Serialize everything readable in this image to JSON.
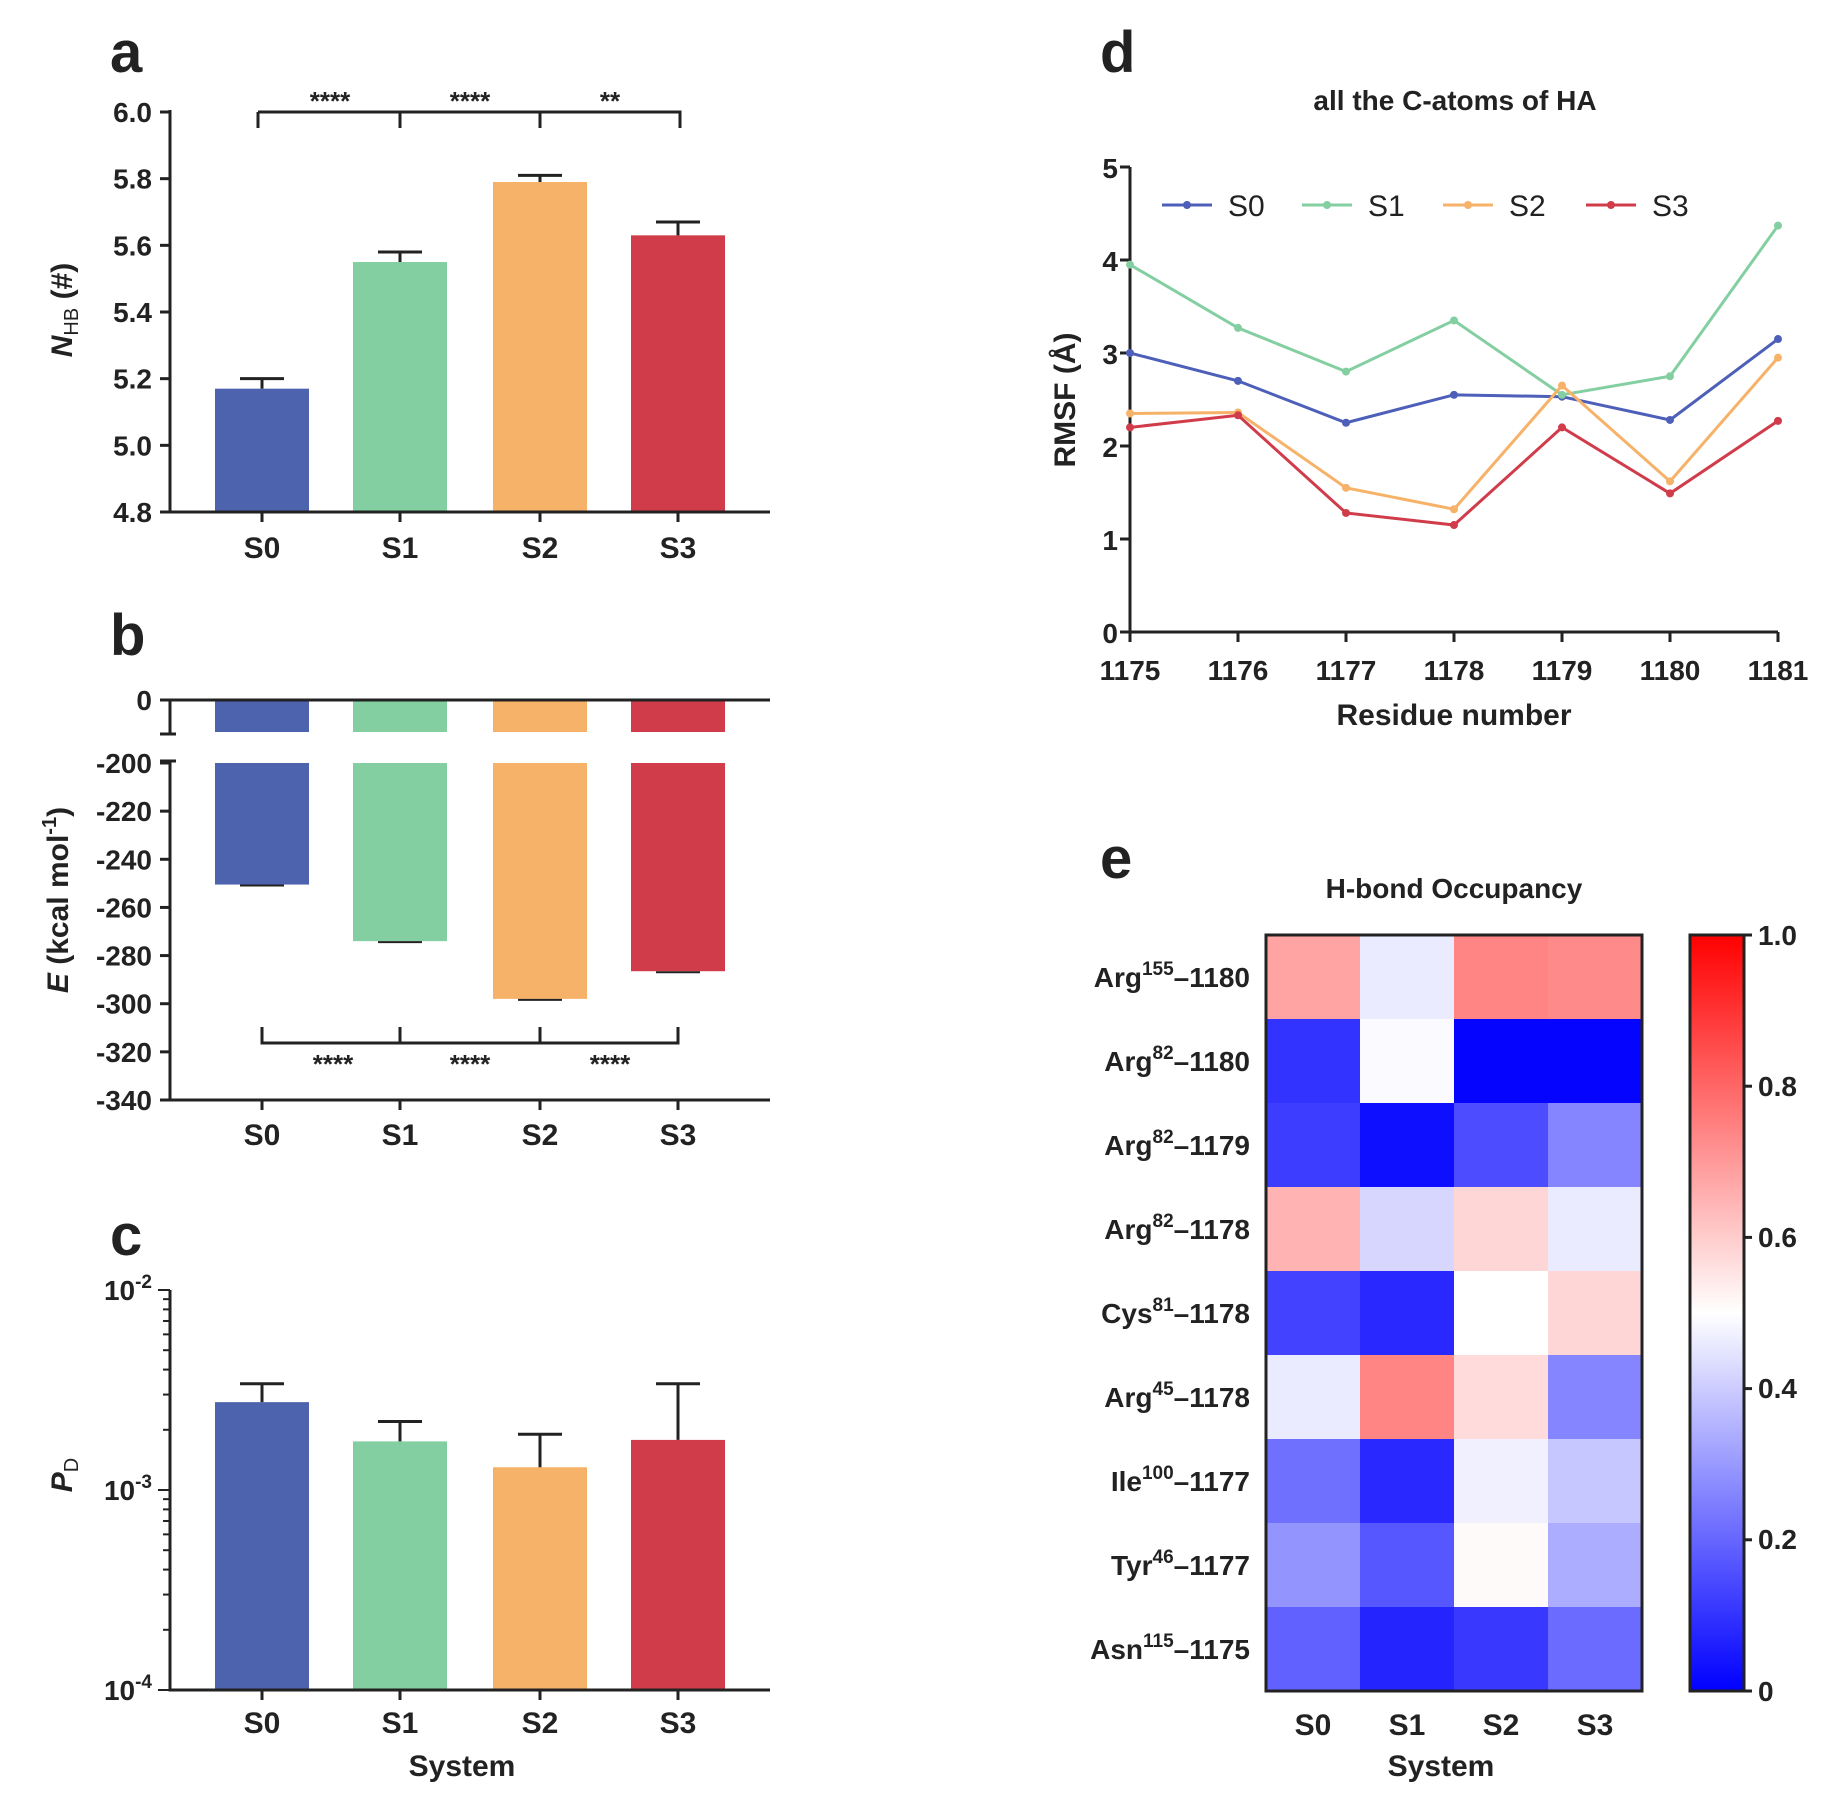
{
  "chart_data": [
    {
      "panel": "a",
      "type": "bar",
      "categories": [
        "S0",
        "S1",
        "S2",
        "S3"
      ],
      "values": [
        5.17,
        5.55,
        5.79,
        5.63
      ],
      "errors": [
        0.03,
        0.03,
        0.02,
        0.04
      ],
      "colors": [
        "#4d63ad",
        "#84cfa1",
        "#f7b26a",
        "#d13c4b"
      ],
      "ylim": [
        4.8,
        6.0
      ],
      "yticks": [
        "4.8",
        "5.0",
        "5.2",
        "5.4",
        "5.6",
        "5.8",
        "6.0"
      ],
      "ylabel_main": "N",
      "ylabel_sub": "HB",
      "ylabel_tail": " (#)",
      "significance": [
        "****",
        "****",
        "**"
      ]
    },
    {
      "panel": "b",
      "type": "bar",
      "categories": [
        "S0",
        "S1",
        "S2",
        "S3"
      ],
      "values": [
        -250.5,
        -274.0,
        -298.0,
        -286.5
      ],
      "colors": [
        "#4d63ad",
        "#84cfa1",
        "#f7b26a",
        "#d13c4b"
      ],
      "ylim": [
        -340,
        0
      ],
      "axis_break": [
        -20,
        -200
      ],
      "yticks": [
        "0",
        "-200",
        "-220",
        "-240",
        "-260",
        "-280",
        "-300",
        "-320",
        "-340"
      ],
      "ylabel_main": "E",
      "ylabel_tail": " (kcal mol",
      "ylabel_sup": "-1",
      "ylabel_end": ")",
      "significance": [
        "****",
        "****",
        "****"
      ]
    },
    {
      "panel": "c",
      "type": "bar",
      "yscale": "log",
      "categories": [
        "S0",
        "S1",
        "S2",
        "S3"
      ],
      "values": [
        0.00275,
        0.00175,
        0.0013,
        0.00178
      ],
      "err_top": [
        0.0034,
        0.0022,
        0.0019,
        0.0034
      ],
      "colors": [
        "#4d63ad",
        "#84cfa1",
        "#f7b26a",
        "#d13c4b"
      ],
      "ylim": [
        0.0001,
        0.01
      ],
      "yticks": [
        {
          "base": "10",
          "exp": "-2"
        },
        {
          "base": "10",
          "exp": "-3"
        },
        {
          "base": "10",
          "exp": "-4"
        }
      ],
      "ylabel_main": "P",
      "ylabel_sub": "D",
      "xlabel": "System"
    },
    {
      "panel": "d",
      "type": "line",
      "title": "all the C-atoms of HA",
      "xlabel": "Residue number",
      "ylabel": "RMSF (Å)",
      "x": [
        1175,
        1176,
        1177,
        1178,
        1179,
        1180,
        1181
      ],
      "xticks": [
        "1175",
        "1176",
        "1177",
        "1178",
        "1179",
        "1180",
        "1181"
      ],
      "ylim": [
        0,
        5
      ],
      "yticks": [
        "0",
        "1",
        "2",
        "3",
        "4",
        "5"
      ],
      "series": [
        {
          "name": "S0",
          "color": "#4d5fb8",
          "values": [
            3.0,
            2.7,
            2.25,
            2.55,
            2.53,
            2.28,
            3.15
          ]
        },
        {
          "name": "S1",
          "color": "#84cfa1",
          "values": [
            3.95,
            3.27,
            2.8,
            3.35,
            2.55,
            2.75,
            4.37
          ]
        },
        {
          "name": "S2",
          "color": "#f7b26a",
          "values": [
            2.35,
            2.36,
            1.55,
            1.32,
            2.65,
            1.62,
            2.95
          ]
        },
        {
          "name": "S3",
          "color": "#d13c4b",
          "values": [
            2.2,
            2.33,
            1.28,
            1.15,
            2.2,
            1.49,
            2.27
          ]
        }
      ]
    },
    {
      "panel": "e",
      "type": "heatmap",
      "title": "H-bond Occupancy",
      "xlabel": "System",
      "columns": [
        "S0",
        "S1",
        "S2",
        "S3"
      ],
      "rows": [
        {
          "name": "Arg",
          "sup": "155",
          "tail": "–1180"
        },
        {
          "name": "Arg",
          "sup": "82",
          "tail": "–1180"
        },
        {
          "name": "Arg",
          "sup": "82",
          "tail": "–1179"
        },
        {
          "name": "Arg",
          "sup": "82",
          "tail": "–1178"
        },
        {
          "name": "Cys",
          "sup": "81",
          "tail": "–1178"
        },
        {
          "name": "Arg",
          "sup": "45",
          "tail": "–1178"
        },
        {
          "name": "Ile",
          "sup": "100",
          "tail": "–1177"
        },
        {
          "name": "Tyr",
          "sup": "46",
          "tail": "–1177"
        },
        {
          "name": "Asn",
          "sup": "115",
          "tail": "–1175"
        }
      ],
      "values": [
        [
          0.68,
          0.46,
          0.74,
          0.73
        ],
        [
          0.1,
          0.49,
          0.01,
          0.01
        ],
        [
          0.12,
          0.03,
          0.15,
          0.26
        ],
        [
          0.65,
          0.42,
          0.58,
          0.46
        ],
        [
          0.13,
          0.08,
          0.5,
          0.58
        ],
        [
          0.46,
          0.74,
          0.57,
          0.26
        ],
        [
          0.22,
          0.08,
          0.47,
          0.39
        ],
        [
          0.29,
          0.17,
          0.51,
          0.34
        ],
        [
          0.19,
          0.07,
          0.11,
          0.21
        ]
      ],
      "colorbar_ticks": [
        "1.0",
        "0.8",
        "0.6",
        "0.4",
        "0.2",
        "0"
      ],
      "color_low": "#0000ff",
      "color_mid": "#ffffff",
      "color_high": "#ff0000"
    }
  ],
  "panel_labels": [
    "a",
    "b",
    "c",
    "d",
    "e"
  ]
}
